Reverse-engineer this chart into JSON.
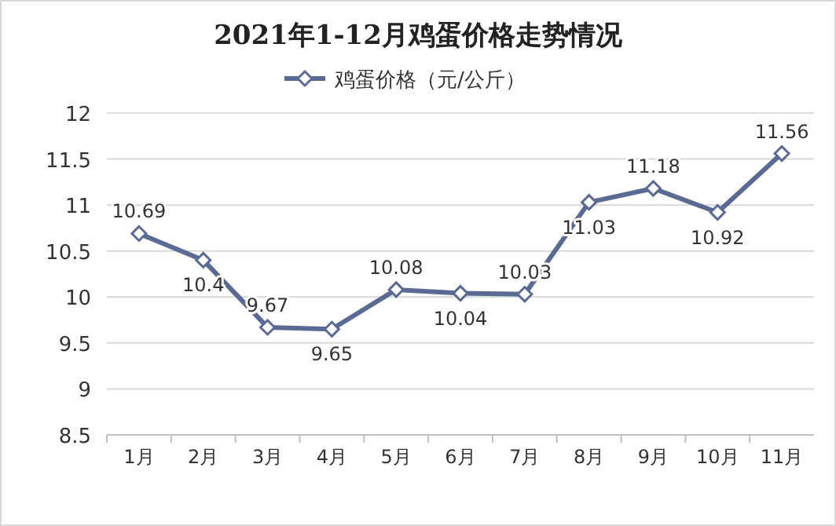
{
  "chart_data": {
    "type": "line",
    "title": "2021年1-12月鸡蛋价格走势情况",
    "categories": [
      "1月",
      "2月",
      "3月",
      "4月",
      "5月",
      "6月",
      "7月",
      "8月",
      "9月",
      "10月",
      "11月"
    ],
    "series": [
      {
        "name": "鸡蛋价格（元/公斤）",
        "color": "#5b6a93",
        "values": [
          10.69,
          10.4,
          9.67,
          9.65,
          10.08,
          10.04,
          10.03,
          11.03,
          11.18,
          10.92,
          11.56
        ]
      }
    ],
    "ylim": [
      8.5,
      12
    ],
    "yticks": [
      8.5,
      9,
      9.5,
      10,
      10.5,
      11,
      11.5,
      12
    ],
    "grid": "y",
    "legend": "top",
    "marker": "diamond",
    "line_style": "solid",
    "data_labels": true
  }
}
